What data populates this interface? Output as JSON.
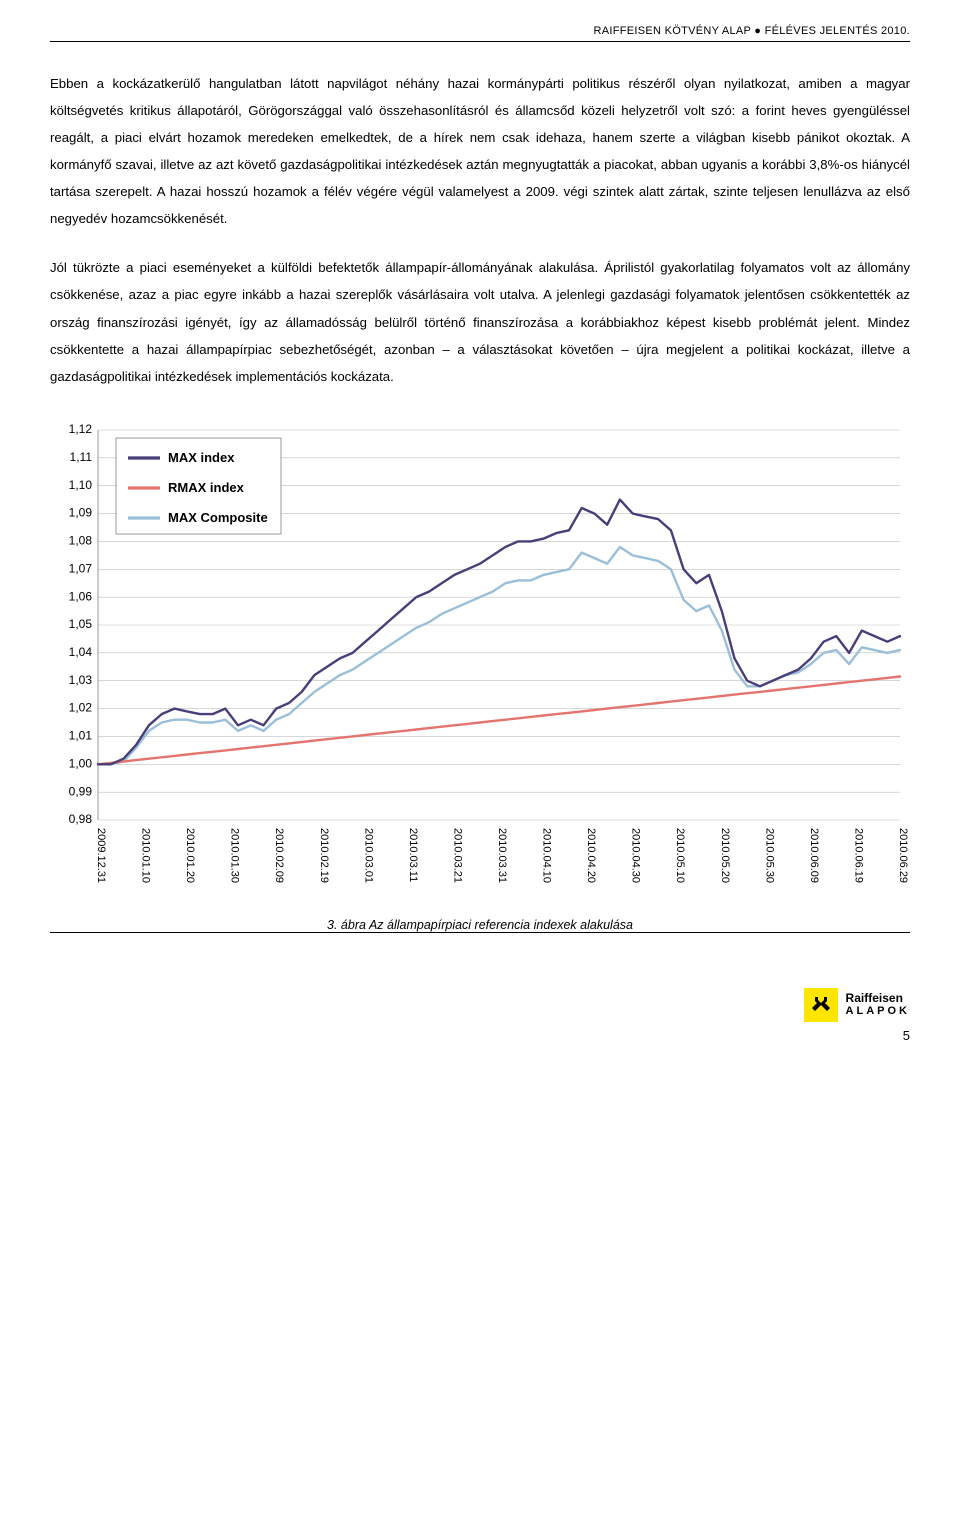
{
  "header": "RAIFFEISEN KÖTVÉNY ALAP ● FÉLÉVES JELENTÉS 2010.",
  "paragraphs": [
    "Ebben a kockázatkerülő hangulatban látott napvilágot néhány hazai kormánypárti politikus részéről olyan nyilatkozat, amiben a magyar költségvetés kritikus állapotáról, Görögországgal való összehasonlításról és államcsőd közeli helyzetről volt szó: a forint heves gyengüléssel reagált, a piaci elvárt hozamok meredeken emelkedtek, de a hírek nem csak idehaza, hanem szerte a világban kisebb pánikot okoztak. A kormányfő szavai, illetve az azt követő gazdaságpolitikai intézkedések aztán megnyugtatták a piacokat, abban ugyanis a korábbi 3,8%-os hiánycél tartása szerepelt. A hazai hosszú hozamok a félév végére végül valamelyest a 2009. végi szintek alatt zártak, szinte teljesen lenullázva az első negyedév hozamcsökkenését.",
    "Jól tükrözte a piaci eseményeket a külföldi befektetők állampapír-állományának alakulása. Áprilistól gyakorlatilag folyamatos volt az állomány csökkenése, azaz a piac egyre inkább a hazai szereplők vásárlásaira volt utalva. A jelenlegi gazdasági folyamatok jelentősen csökkentették az ország finanszírozási igényét, így az államadósság belülről történő finanszírozása a korábbiakhoz képest kisebb problémát jelent. Mindez csökkentette a hazai állampapírpiac sebezhetőségét, azonban – a választásokat követően – újra megjelent a politikai kockázat, illetve a gazdaságpolitikai intézkedések implementációs kockázata."
  ],
  "chart": {
    "type": "line",
    "y_labels": [
      "1,12",
      "1,11",
      "1,10",
      "1,09",
      "1,08",
      "1,07",
      "1,06",
      "1,05",
      "1,04",
      "1,03",
      "1,02",
      "1,01",
      "1,00",
      "0,99",
      "0,98"
    ],
    "y_min": 0.98,
    "y_max": 1.12,
    "x_labels": [
      "2009.12.31",
      "2010.01.10",
      "2010.01.20",
      "2010.01.30",
      "2010.02.09",
      "2010.02.19",
      "2010.03.01",
      "2010.03.11",
      "2010.03.21",
      "2010.03.31",
      "2010.04.10",
      "2010.04.20",
      "2010.04.30",
      "2010.05.10",
      "2010.05.20",
      "2010.05.30",
      "2010.06.09",
      "2010.06.19",
      "2010.06.29"
    ],
    "legend": [
      {
        "label": "MAX index",
        "color": "#4a3e7a"
      },
      {
        "label": "RMAX index",
        "color": "#e5746f"
      },
      {
        "label": "MAX Composite",
        "color": "#9bbfd9"
      }
    ],
    "colors": {
      "grid": "#bfbfbf",
      "axis": "#808080",
      "background": "#ffffff"
    },
    "line_width": 2.4,
    "series": {
      "max_index": [
        1.0,
        1.0,
        1.002,
        1.007,
        1.014,
        1.018,
        1.02,
        1.019,
        1.018,
        1.018,
        1.02,
        1.014,
        1.016,
        1.014,
        1.02,
        1.022,
        1.026,
        1.032,
        1.035,
        1.038,
        1.04,
        1.044,
        1.048,
        1.052,
        1.056,
        1.06,
        1.062,
        1.065,
        1.068,
        1.07,
        1.072,
        1.075,
        1.078,
        1.08,
        1.08,
        1.081,
        1.083,
        1.084,
        1.092,
        1.09,
        1.086,
        1.095,
        1.09,
        1.089,
        1.088,
        1.084,
        1.07,
        1.065,
        1.068,
        1.055,
        1.038,
        1.03,
        1.028,
        1.03,
        1.032,
        1.034,
        1.038,
        1.044,
        1.046,
        1.04,
        1.048,
        1.046,
        1.044,
        1.046
      ],
      "rmax_index": [
        1.0,
        1.0005,
        1.001,
        1.0015,
        1.002,
        1.0025,
        1.003,
        1.0035,
        1.004,
        1.0045,
        1.005,
        1.0055,
        1.006,
        1.0065,
        1.007,
        1.0075,
        1.008,
        1.0085,
        1.009,
        1.0095,
        1.01,
        1.0105,
        1.011,
        1.0115,
        1.012,
        1.0125,
        1.013,
        1.0135,
        1.014,
        1.0145,
        1.015,
        1.0155,
        1.016,
        1.0165,
        1.017,
        1.0175,
        1.018,
        1.0185,
        1.019,
        1.0195,
        1.02,
        1.0205,
        1.021,
        1.0215,
        1.022,
        1.0225,
        1.023,
        1.0235,
        1.024,
        1.0245,
        1.025,
        1.0255,
        1.026,
        1.0265,
        1.027,
        1.0275,
        1.028,
        1.0285,
        1.029,
        1.0295,
        1.03,
        1.0305,
        1.031,
        1.0315
      ],
      "max_composite": [
        1.0,
        1.0,
        1.001,
        1.006,
        1.012,
        1.015,
        1.016,
        1.016,
        1.015,
        1.015,
        1.016,
        1.012,
        1.014,
        1.012,
        1.016,
        1.018,
        1.022,
        1.026,
        1.029,
        1.032,
        1.034,
        1.037,
        1.04,
        1.043,
        1.046,
        1.049,
        1.051,
        1.054,
        1.056,
        1.058,
        1.06,
        1.062,
        1.065,
        1.066,
        1.066,
        1.068,
        1.069,
        1.07,
        1.076,
        1.074,
        1.072,
        1.078,
        1.075,
        1.074,
        1.073,
        1.07,
        1.059,
        1.055,
        1.057,
        1.048,
        1.034,
        1.028,
        1.028,
        1.03,
        1.032,
        1.033,
        1.036,
        1.04,
        1.041,
        1.036,
        1.042,
        1.041,
        1.04,
        1.041
      ]
    }
  },
  "caption": "3. ábra  Az állampapírpiaci referencia indexek alakulása",
  "footer": {
    "page_num": "5",
    "logo_name": "Raiffeisen",
    "logo_sub": "ALAPOK"
  }
}
